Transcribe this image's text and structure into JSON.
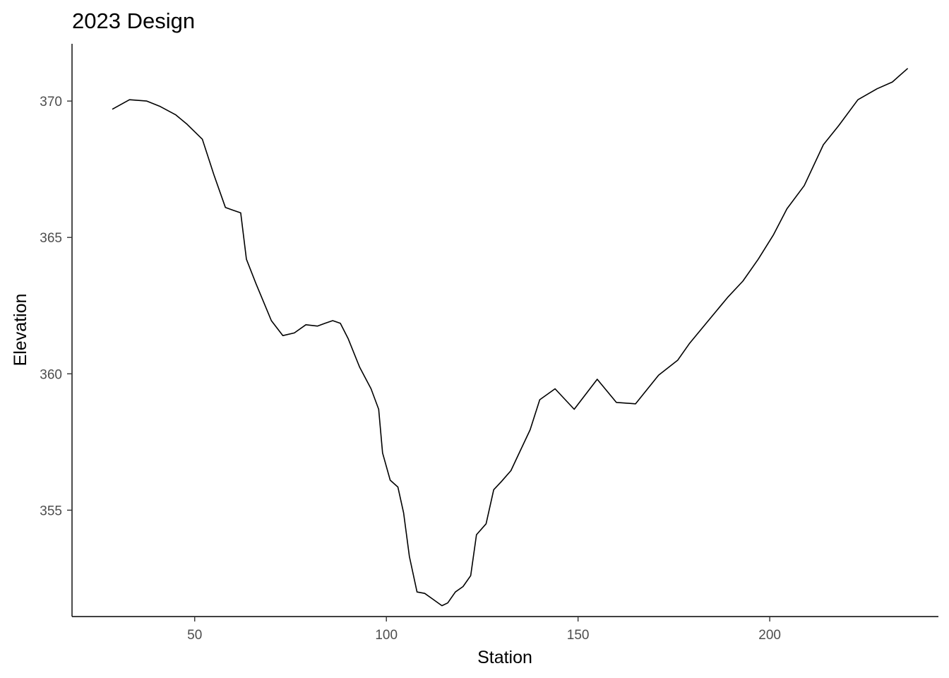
{
  "chart_data": {
    "type": "line",
    "title": "2023 Design",
    "xlabel": "Station",
    "ylabel": "Elevation",
    "xlim": [
      18,
      244
    ],
    "ylim": [
      351.1,
      372.1
    ],
    "x_ticks": [
      50,
      100,
      150,
      200
    ],
    "y_ticks": [
      355,
      360,
      365,
      370
    ],
    "grid": false,
    "legend": "none",
    "line_color": "#000000",
    "series": [
      {
        "x": [
          28.5,
          33,
          37.5,
          41,
          45,
          48,
          52,
          55,
          58,
          60,
          62,
          63.5,
          66,
          70,
          73,
          76,
          79,
          82,
          84,
          86,
          88,
          90,
          93,
          96,
          98,
          99,
          101,
          103,
          104.5,
          106,
          108,
          110,
          112,
          114.5,
          116,
          118,
          120,
          122,
          123.5,
          126,
          128,
          130,
          132.5,
          135,
          137.5,
          140,
          144,
          149,
          155,
          160,
          165,
          171,
          176,
          179,
          184,
          189,
          193,
          197,
          201,
          204.5,
          209,
          214,
          218,
          223,
          228,
          232,
          236
        ],
        "y": [
          369.7,
          370.05,
          370.0,
          369.8,
          369.5,
          369.15,
          368.6,
          367.3,
          366.1,
          366.0,
          365.9,
          364.2,
          363.3,
          361.95,
          361.4,
          361.5,
          361.8,
          361.75,
          361.85,
          361.95,
          361.85,
          361.3,
          360.25,
          359.45,
          358.7,
          357.1,
          356.1,
          355.85,
          354.9,
          353.3,
          352.0,
          351.95,
          351.75,
          351.5,
          351.6,
          352.0,
          352.2,
          352.6,
          354.1,
          354.5,
          355.75,
          356.05,
          356.45,
          357.2,
          357.95,
          359.05,
          359.45,
          358.7,
          359.8,
          358.95,
          358.9,
          359.95,
          360.5,
          361.1,
          361.95,
          362.8,
          363.4,
          364.2,
          365.1,
          366.05,
          366.9,
          368.4,
          369.1,
          370.05,
          370.45,
          370.7,
          371.2
        ]
      }
    ]
  }
}
